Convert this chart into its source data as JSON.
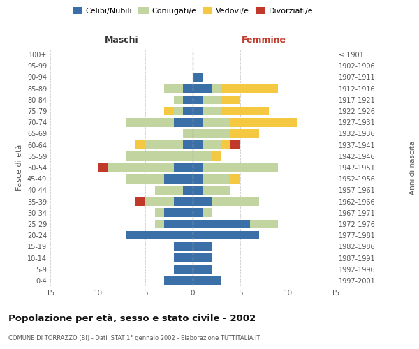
{
  "age_groups": [
    "0-4",
    "5-9",
    "10-14",
    "15-19",
    "20-24",
    "25-29",
    "30-34",
    "35-39",
    "40-44",
    "45-49",
    "50-54",
    "55-59",
    "60-64",
    "65-69",
    "70-74",
    "75-79",
    "80-84",
    "85-89",
    "90-94",
    "95-99",
    "100+"
  ],
  "birth_years": [
    "1997-2001",
    "1992-1996",
    "1987-1991",
    "1982-1986",
    "1977-1981",
    "1972-1976",
    "1967-1971",
    "1962-1966",
    "1957-1961",
    "1952-1956",
    "1947-1951",
    "1942-1946",
    "1937-1941",
    "1932-1936",
    "1927-1931",
    "1922-1926",
    "1917-1921",
    "1912-1916",
    "1907-1911",
    "1902-1906",
    "≤ 1901"
  ],
  "colors": {
    "celibi": "#3a6fa8",
    "coniugati": "#c2d4a0",
    "vedovi": "#f5c842",
    "divorziati": "#c0392b"
  },
  "males": {
    "celibi": [
      3,
      2,
      2,
      2,
      7,
      3,
      3,
      2,
      1,
      3,
      2,
      0,
      1,
      0,
      2,
      1,
      1,
      1,
      0,
      0,
      0
    ],
    "coniugati": [
      0,
      0,
      0,
      0,
      0,
      1,
      1,
      3,
      3,
      4,
      7,
      7,
      4,
      1,
      5,
      1,
      1,
      2,
      0,
      0,
      0
    ],
    "vedovi": [
      0,
      0,
      0,
      0,
      0,
      0,
      0,
      0,
      0,
      0,
      0,
      0,
      1,
      0,
      0,
      1,
      0,
      0,
      0,
      0,
      0
    ],
    "divorziati": [
      0,
      0,
      0,
      0,
      0,
      0,
      0,
      1,
      0,
      0,
      1,
      0,
      0,
      0,
      0,
      0,
      0,
      0,
      0,
      0,
      0
    ]
  },
  "females": {
    "nubili": [
      3,
      2,
      2,
      2,
      7,
      6,
      1,
      2,
      1,
      1,
      1,
      0,
      1,
      0,
      1,
      1,
      1,
      2,
      1,
      0,
      0
    ],
    "coniugate": [
      0,
      0,
      0,
      0,
      0,
      3,
      1,
      5,
      3,
      3,
      8,
      2,
      2,
      4,
      3,
      2,
      2,
      1,
      0,
      0,
      0
    ],
    "vedove": [
      0,
      0,
      0,
      0,
      0,
      0,
      0,
      0,
      0,
      1,
      0,
      1,
      1,
      3,
      7,
      5,
      2,
      6,
      0,
      0,
      0
    ],
    "divorziate": [
      0,
      0,
      0,
      0,
      0,
      0,
      0,
      0,
      0,
      0,
      0,
      0,
      1,
      0,
      0,
      0,
      0,
      0,
      0,
      0,
      0
    ]
  },
  "xlim": 15,
  "title": "Popolazione per età, sesso e stato civile - 2002",
  "subtitle": "COMUNE DI TORRAZZO (BI) - Dati ISTAT 1° gennaio 2002 - Elaborazione TUTTITALIA.IT",
  "ylabel_left": "Fasce di età",
  "ylabel_right": "Anni di nascita",
  "xlabel_left": "Maschi",
  "xlabel_right": "Femmine",
  "background_color": "#ffffff",
  "grid_color": "#cccccc"
}
